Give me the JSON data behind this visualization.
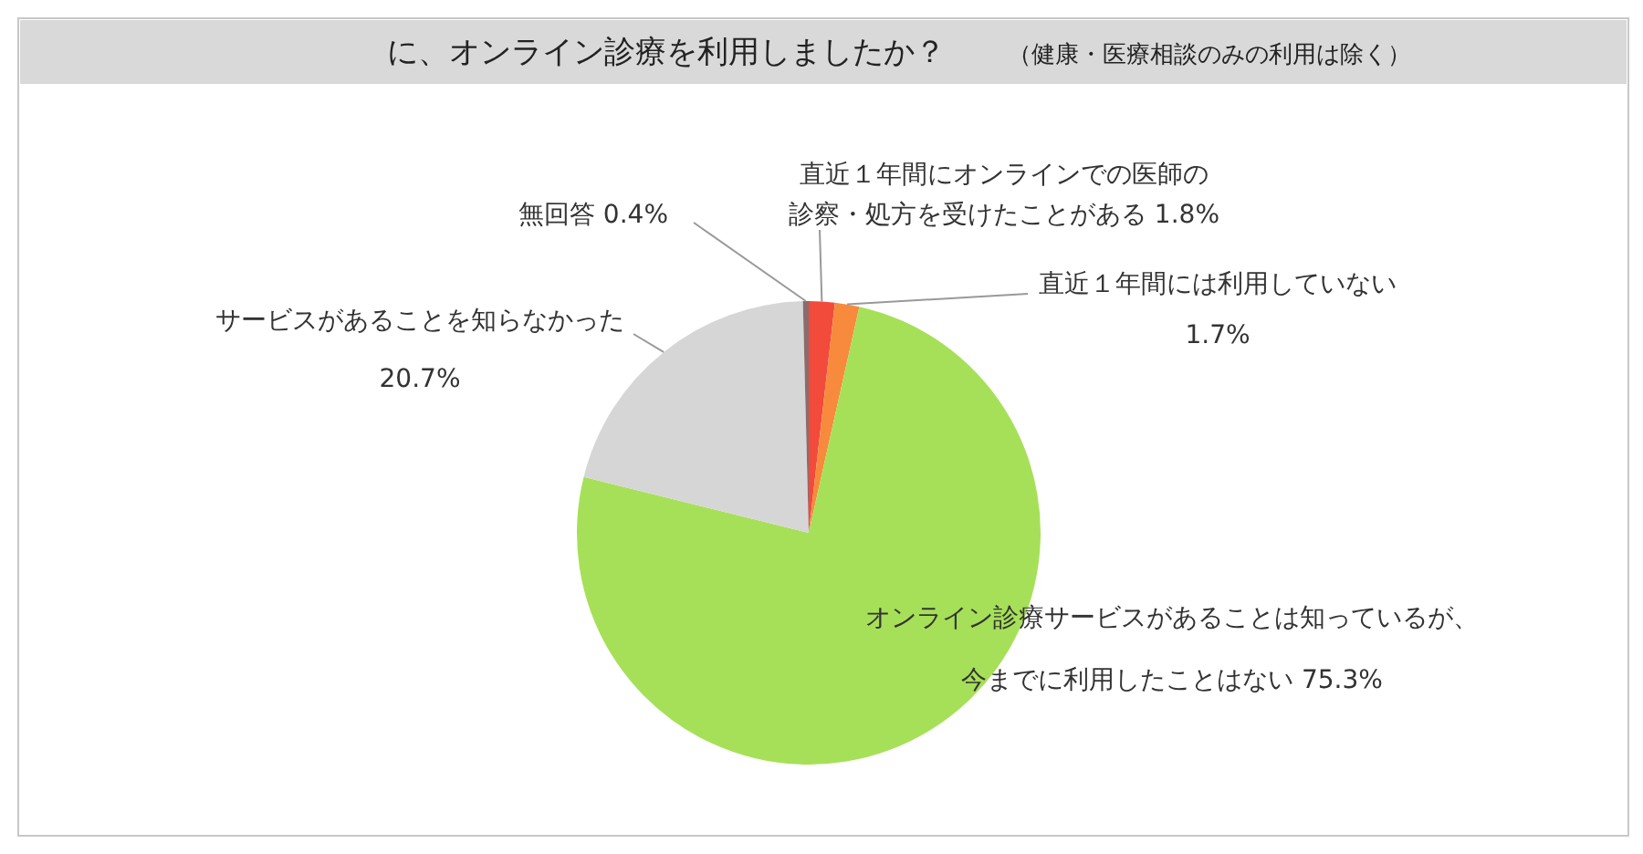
{
  "chart_data": {
    "type": "pie",
    "title": "に、オンライン診療を利用しましたか？",
    "subtitle": "（健康・医療相談のみの利用は除く）",
    "categories": [
      "直近１年間にオンラインでの医師の診察・処方を受けたことがある",
      "直近１年間には利用していない",
      "オンライン診療サービスがあることは知っているが、今までに利用したことはない",
      "サービスがあることを知らなかった",
      "無回答"
    ],
    "values": [
      1.8,
      1.7,
      75.3,
      20.7,
      0.4
    ],
    "colors": [
      "#f24a3b",
      "#f78a3c",
      "#a6e058",
      "#d6d6d6",
      "#8c6b6b"
    ],
    "value_labels": [
      "1.8%",
      "1.7%",
      "75.3%",
      "20.7%",
      "0.4%"
    ]
  }
}
